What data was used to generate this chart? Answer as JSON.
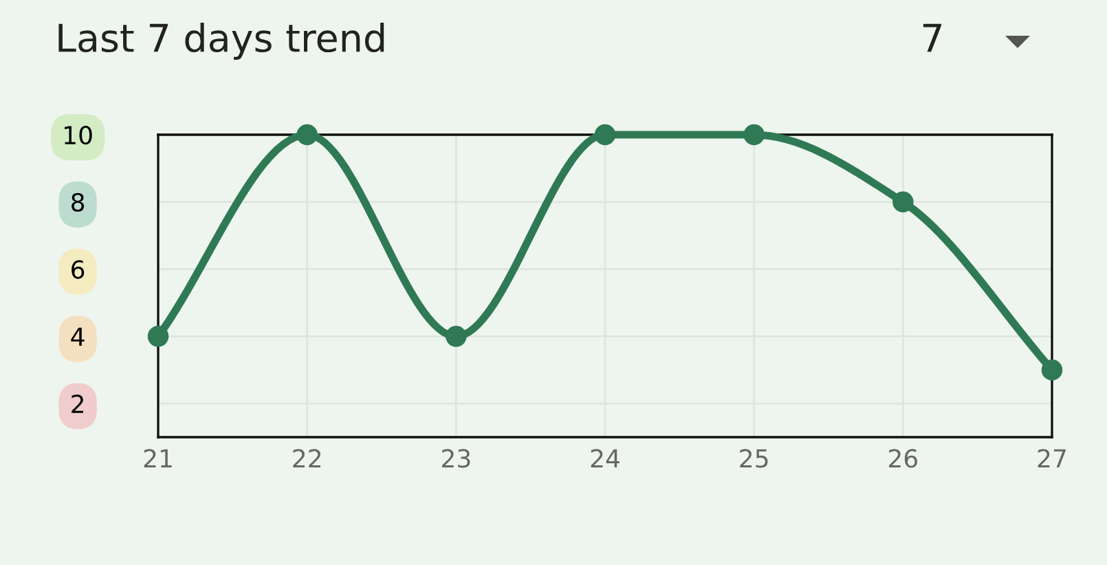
{
  "chart_data": {
    "type": "line",
    "title": "Last 7 days trend",
    "x": [
      21,
      22,
      23,
      24,
      25,
      26,
      27
    ],
    "series": [
      {
        "color": "#2f7a55",
        "values": [
          4,
          10,
          4,
          10,
          10,
          8,
          3
        ]
      }
    ],
    "xlim": [
      21,
      27
    ],
    "xticks": [
      21,
      22,
      23,
      24,
      25,
      26,
      27
    ],
    "ylim": [
      1,
      10
    ],
    "yticks": [
      2,
      4,
      6,
      8,
      10
    ],
    "grid": true,
    "marker": "circle",
    "line_style": "solid",
    "annotations": [
      "7"
    ]
  }
}
